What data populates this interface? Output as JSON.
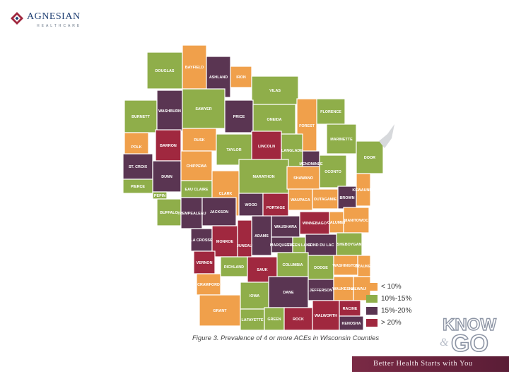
{
  "logo": {
    "name": "AGNESIAN",
    "subtitle": "HEALTHCARE",
    "icon": "diamond-logo-icon"
  },
  "caption": "Figure 3. Prevalence of 4 or more ACEs in Wisconsin Counties",
  "legend": [
    {
      "label": "< 10%",
      "color": "#f0a04b"
    },
    {
      "label": "10%-15%",
      "color": "#8fae4a"
    },
    {
      "label": "15%-20%",
      "color": "#5a3552"
    },
    {
      "label": "> 20%",
      "color": "#a0283f"
    }
  ],
  "counties": [
    {
      "name": "DOUGLAS",
      "category": "10%-15%"
    },
    {
      "name": "BAYFIELD",
      "category": "< 10%"
    },
    {
      "name": "ASHLAND",
      "category": "15%-20%"
    },
    {
      "name": "IRON",
      "category": "< 10%"
    },
    {
      "name": "VILAS",
      "category": "10%-15%"
    },
    {
      "name": "BURNETT",
      "category": "10%-15%"
    },
    {
      "name": "WASHBURN",
      "category": "15%-20%"
    },
    {
      "name": "SAWYER",
      "category": "10%-15%"
    },
    {
      "name": "PRICE",
      "category": "15%-20%"
    },
    {
      "name": "ONEIDA",
      "category": "10%-15%"
    },
    {
      "name": "FLORENCE",
      "category": "10%-15%"
    },
    {
      "name": "FOREST",
      "category": "< 10%"
    },
    {
      "name": "MARINETTE",
      "category": "10%-15%"
    },
    {
      "name": "POLK",
      "category": "< 10%"
    },
    {
      "name": "BARRON",
      "category": "> 20%"
    },
    {
      "name": "RUSK",
      "category": "< 10%"
    },
    {
      "name": "LINCOLN",
      "category": "> 20%"
    },
    {
      "name": "TAYLOR",
      "category": "10%-15%"
    },
    {
      "name": "LANGLADE",
      "category": "10%-15%"
    },
    {
      "name": "DOOR",
      "category": "10%-15%"
    },
    {
      "name": "ST. CROIX",
      "category": "15%-20%"
    },
    {
      "name": "DUNN",
      "category": "15%-20%"
    },
    {
      "name": "CHIPPEWA",
      "category": "< 10%"
    },
    {
      "name": "MENOMINEE",
      "category": "15%-20%"
    },
    {
      "name": "OCONTO",
      "category": "10%-15%"
    },
    {
      "name": "MARATHON",
      "category": "10%-15%"
    },
    {
      "name": "SHAWANO",
      "category": "< 10%"
    },
    {
      "name": "PIERCE",
      "category": "10%-15%"
    },
    {
      "name": "PEPIN",
      "category": "10%-15%"
    },
    {
      "name": "EAU CLAIRE",
      "category": "10%-15%"
    },
    {
      "name": "CLARK",
      "category": "< 10%"
    },
    {
      "name": "WOOD",
      "category": "15%-20%"
    },
    {
      "name": "PORTAGE",
      "category": "> 20%"
    },
    {
      "name": "WAUPACA",
      "category": "< 10%"
    },
    {
      "name": "OUTAGAMIE",
      "category": "< 10%"
    },
    {
      "name": "BROWN",
      "category": "15%-20%"
    },
    {
      "name": "KEWAUNEE",
      "category": "< 10%"
    },
    {
      "name": "BUFFALO",
      "category": "10%-15%"
    },
    {
      "name": "TREMPEALEAU",
      "category": "15%-20%"
    },
    {
      "name": "JACKSON",
      "category": "15%-20%"
    },
    {
      "name": "ADAMS",
      "category": "15%-20%"
    },
    {
      "name": "WAUSHARA",
      "category": "15%-20%"
    },
    {
      "name": "WINNEBAGO",
      "category": "> 20%"
    },
    {
      "name": "CALUMET",
      "category": "< 10%"
    },
    {
      "name": "MANITOWOC",
      "category": "< 10%"
    },
    {
      "name": "LA CROSSE",
      "category": "15%-20%"
    },
    {
      "name": "MONROE",
      "category": "> 20%"
    },
    {
      "name": "JUNEAU",
      "category": "> 20%"
    },
    {
      "name": "MARQUETTE",
      "category": "15%-20%"
    },
    {
      "name": "GREEN LAKE",
      "category": "10%-15%"
    },
    {
      "name": "FOND DU LAC",
      "category": "15%-20%"
    },
    {
      "name": "SHEBOYGAN",
      "category": "10%-15%"
    },
    {
      "name": "VERNON",
      "category": "> 20%"
    },
    {
      "name": "RICHLAND",
      "category": "10%-15%"
    },
    {
      "name": "SAUK",
      "category": "> 20%"
    },
    {
      "name": "COLUMBIA",
      "category": "10%-15%"
    },
    {
      "name": "DODGE",
      "category": "10%-15%"
    },
    {
      "name": "WASHINGTON",
      "category": "< 10%"
    },
    {
      "name": "OZAUKEE",
      "category": "< 10%"
    },
    {
      "name": "CRAWFORD",
      "category": "< 10%"
    },
    {
      "name": "GRANT",
      "category": "< 10%"
    },
    {
      "name": "IOWA",
      "category": "10%-15%"
    },
    {
      "name": "DANE",
      "category": "15%-20%"
    },
    {
      "name": "JEFFERSON",
      "category": "15%-20%"
    },
    {
      "name": "WAUKESHA",
      "category": "< 10%"
    },
    {
      "name": "MILWAUKEE",
      "category": "< 10%"
    },
    {
      "name": "LAFAYETTE",
      "category": "10%-15%"
    },
    {
      "name": "GREEN",
      "category": "10%-15%"
    },
    {
      "name": "ROCK",
      "category": "> 20%"
    },
    {
      "name": "WALWORTH",
      "category": "> 20%"
    },
    {
      "name": "RACINE",
      "category": "> 20%"
    },
    {
      "name": "KENOSHA",
      "category": "15%-20%"
    }
  ],
  "brand": {
    "line1": "KNOW",
    "line2": "GO",
    "tagline": "Better Health Starts with You"
  }
}
